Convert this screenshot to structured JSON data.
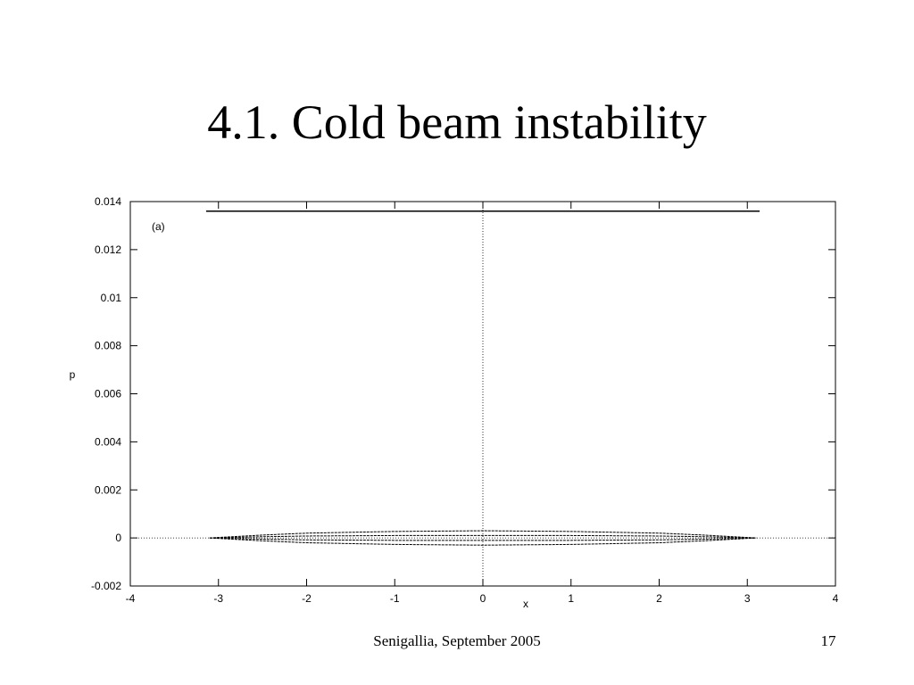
{
  "slide": {
    "title": "4.1. Cold beam instability",
    "footer": "Senigallia, September 2005",
    "page_number": 17
  },
  "chart_data": {
    "type": "line",
    "annotation": "(a)",
    "xlabel": "x",
    "ylabel": "p",
    "xlim": [
      -4,
      4
    ],
    "ylim": [
      -0.002,
      0.014
    ],
    "xticks": [
      -4,
      -3,
      -2,
      -1,
      0,
      1,
      2,
      3,
      4
    ],
    "yticks": [
      -0.002,
      0,
      0.002,
      0.004,
      0.006,
      0.008,
      0.01,
      0.012,
      0.014
    ],
    "series": [
      {
        "color": "#000000",
        "x": [
          -3.14,
          3.14
        ],
        "values": [
          0.0136,
          0.0136
        ]
      },
      {
        "color": "#000000",
        "x": [
          -3.1,
          -2.5,
          -2,
          -1,
          0,
          1,
          2,
          2.5,
          3.1
        ],
        "values": [
          0,
          0.00012,
          0.0002,
          0.00027,
          0.0003,
          0.00027,
          0.0002,
          0.00012,
          0
        ]
      },
      {
        "color": "#000000",
        "x": [
          -3.1,
          -2.5,
          -2,
          -1,
          0,
          1,
          2,
          2.5,
          3.1
        ],
        "values": [
          0,
          -0.00012,
          -0.0002,
          -0.00027,
          -0.0003,
          -0.00027,
          -0.0002,
          -0.00012,
          0
        ]
      },
      {
        "color": "#000000",
        "x": [
          -3.1,
          -2.5,
          -2,
          -1,
          0,
          1,
          2,
          2.5,
          3.1
        ],
        "values": [
          0,
          5e-05,
          8e-05,
          0.0001,
          0.0001,
          0.0001,
          8e-05,
          5e-05,
          0
        ]
      },
      {
        "color": "#000000",
        "x": [
          -3.1,
          -2.5,
          -2,
          -1,
          0,
          1,
          2,
          2.5,
          3.1
        ],
        "values": [
          0,
          -5e-05,
          -8e-05,
          -0.0001,
          -0.0001,
          -0.0001,
          -8e-05,
          -5e-05,
          0
        ]
      }
    ]
  }
}
